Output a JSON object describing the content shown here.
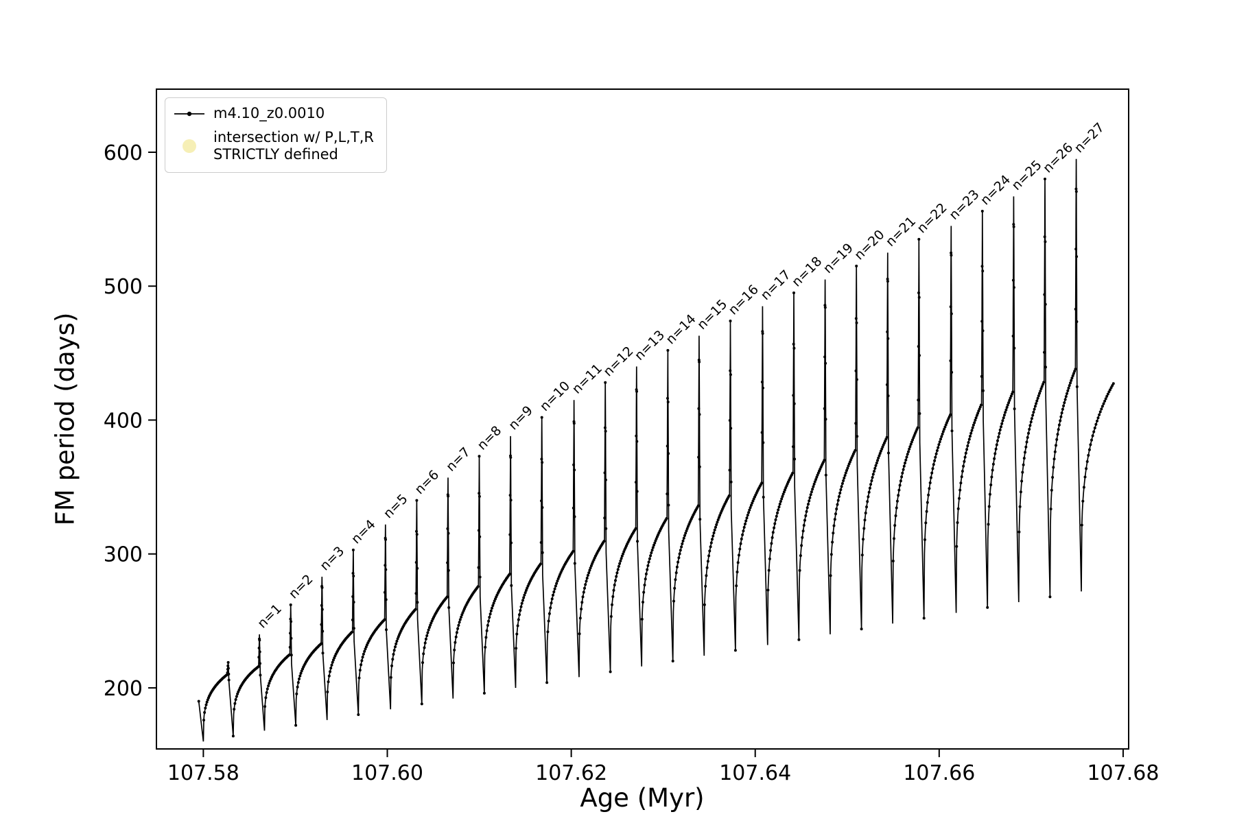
{
  "figure": {
    "background": "#ffffff",
    "frame_color": "#000000"
  },
  "chart_data": {
    "type": "line",
    "title": "",
    "xlabel": "Age (Myr)",
    "ylabel": "FM period (days)",
    "xlim": [
      107.5749,
      107.6806
    ],
    "ylim": [
      154.4,
      647.1
    ],
    "grid": false,
    "line_color": "#000000",
    "x_ticks": [
      107.58,
      107.6,
      107.62,
      107.64,
      107.66,
      107.68
    ],
    "x_tick_labels": [
      "107.58",
      "107.60",
      "107.62",
      "107.64",
      "107.66",
      "107.68"
    ],
    "y_ticks": [
      200,
      300,
      400,
      500,
      600
    ],
    "y_tick_labels": [
      "200",
      "300",
      "400",
      "500",
      "600"
    ],
    "legend": {
      "position": "upper-left",
      "items": [
        {
          "label": "m4.10_z0.0010",
          "marker": "line-with-dot",
          "color": "#000000"
        },
        {
          "label_line1": "intersection w/ P,L,T,R",
          "label_line2": "STRICTLY defined",
          "marker": "large-dot",
          "color": "#f6eeb2"
        }
      ]
    },
    "series_label": "m4.10_z0.0010",
    "start": {
      "x": 107.5795,
      "value": 190
    },
    "spike_half_width": 9e-05,
    "cycles": [
      {
        "label": "",
        "dip_x": 107.58,
        "dip": 160,
        "spike_x": 107.5827,
        "plateau": 210,
        "peak": 219
      },
      {
        "label": "n=1",
        "dip_x": 107.58325,
        "dip": 164,
        "spike_x": 107.5861,
        "plateau": 216,
        "peak": 240
      },
      {
        "label": "n=2",
        "dip_x": 107.58665,
        "dip": 168,
        "spike_x": 107.5895,
        "plateau": 225,
        "peak": 262
      },
      {
        "label": "n=3",
        "dip_x": 107.59005,
        "dip": 172,
        "spike_x": 107.5929,
        "plateau": 233,
        "peak": 283
      },
      {
        "label": "n=4",
        "dip_x": 107.59345,
        "dip": 176,
        "spike_x": 107.5963,
        "plateau": 242,
        "peak": 303
      },
      {
        "label": "n=5",
        "dip_x": 107.59685,
        "dip": 180,
        "spike_x": 107.5998,
        "plateau": 251,
        "peak": 322
      },
      {
        "label": "n=6",
        "dip_x": 107.60035,
        "dip": 184,
        "spike_x": 107.6032,
        "plateau": 259,
        "peak": 340
      },
      {
        "label": "n=7",
        "dip_x": 107.60375,
        "dip": 188,
        "spike_x": 107.6066,
        "plateau": 268,
        "peak": 357
      },
      {
        "label": "n=8",
        "dip_x": 107.60715,
        "dip": 192,
        "spike_x": 107.61,
        "plateau": 276,
        "peak": 373
      },
      {
        "label": "n=9",
        "dip_x": 107.61055,
        "dip": 196,
        "spike_x": 107.6134,
        "plateau": 285,
        "peak": 388
      },
      {
        "label": "n=10",
        "dip_x": 107.61395,
        "dip": 200,
        "spike_x": 107.6168,
        "plateau": 293,
        "peak": 402
      },
      {
        "label": "n=11",
        "dip_x": 107.61735,
        "dip": 204,
        "spike_x": 107.6203,
        "plateau": 302,
        "peak": 415
      },
      {
        "label": "n=12",
        "dip_x": 107.62085,
        "dip": 208,
        "spike_x": 107.6237,
        "plateau": 310,
        "peak": 428
      },
      {
        "label": "n=13",
        "dip_x": 107.62425,
        "dip": 212,
        "spike_x": 107.6271,
        "plateau": 319,
        "peak": 440
      },
      {
        "label": "n=14",
        "dip_x": 107.62765,
        "dip": 216,
        "spike_x": 107.6305,
        "plateau": 327,
        "peak": 452
      },
      {
        "label": "n=15",
        "dip_x": 107.63105,
        "dip": 220,
        "spike_x": 107.6339,
        "plateau": 336,
        "peak": 463
      },
      {
        "label": "n=16",
        "dip_x": 107.63445,
        "dip": 224,
        "spike_x": 107.6373,
        "plateau": 344,
        "peak": 474
      },
      {
        "label": "n=17",
        "dip_x": 107.63785,
        "dip": 228,
        "spike_x": 107.6408,
        "plateau": 353,
        "peak": 485
      },
      {
        "label": "n=18",
        "dip_x": 107.64135,
        "dip": 232,
        "spike_x": 107.6442,
        "plateau": 361,
        "peak": 495
      },
      {
        "label": "n=19",
        "dip_x": 107.64475,
        "dip": 236,
        "spike_x": 107.6476,
        "plateau": 370,
        "peak": 505
      },
      {
        "label": "n=20",
        "dip_x": 107.64815,
        "dip": 240,
        "spike_x": 107.651,
        "plateau": 378,
        "peak": 515
      },
      {
        "label": "n=21",
        "dip_x": 107.65155,
        "dip": 244,
        "spike_x": 107.6544,
        "plateau": 387,
        "peak": 525
      },
      {
        "label": "n=22",
        "dip_x": 107.65495,
        "dip": 248,
        "spike_x": 107.6578,
        "plateau": 395,
        "peak": 535
      },
      {
        "label": "n=23",
        "dip_x": 107.65835,
        "dip": 252,
        "spike_x": 107.6613,
        "plateau": 404,
        "peak": 545
      },
      {
        "label": "n=24",
        "dip_x": 107.66185,
        "dip": 256,
        "spike_x": 107.6647,
        "plateau": 412,
        "peak": 556
      },
      {
        "label": "n=25",
        "dip_x": 107.66525,
        "dip": 260,
        "spike_x": 107.6681,
        "plateau": 421,
        "peak": 567
      },
      {
        "label": "n=26",
        "dip_x": 107.66865,
        "dip": 264,
        "spike_x": 107.6715,
        "plateau": 429,
        "peak": 580
      },
      {
        "label": "n=27",
        "dip_x": 107.67205,
        "dip": 268,
        "spike_x": 107.6749,
        "plateau": 438,
        "peak": 595
      }
    ],
    "end_dip": {
      "x": 107.67545,
      "value": 272
    },
    "end": {
      "x": 107.679,
      "value": 428
    }
  }
}
